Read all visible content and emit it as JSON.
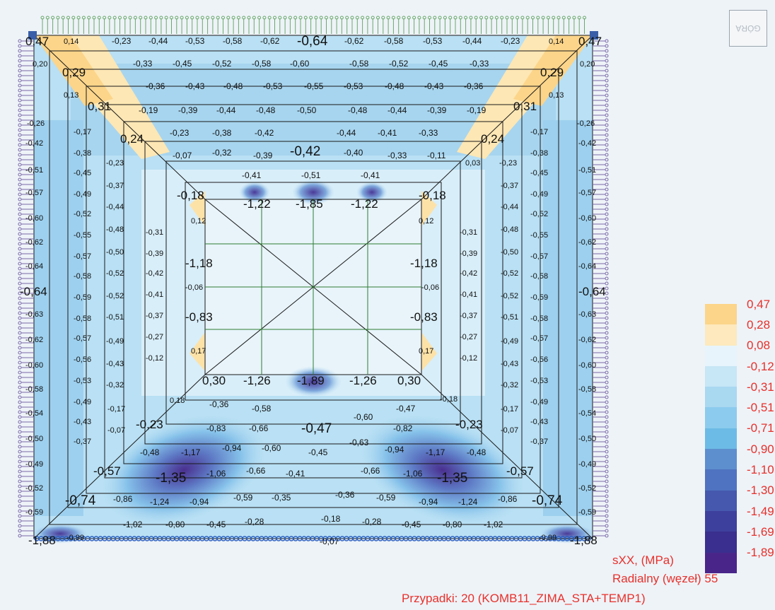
{
  "view_cube": {
    "label": "GÓRA"
  },
  "legend": {
    "colors": [
      "#fcd58a",
      "#fde9bd",
      "#e7f4fb",
      "#c7e6f6",
      "#a9d8f1",
      "#8ccbed",
      "#6cbbe6",
      "#5d8fcf",
      "#4f73c0",
      "#4558ad",
      "#3e409d",
      "#3a2f8e",
      "#49258a"
    ],
    "labels": [
      "0,47",
      "0,28",
      "0,08",
      "-0,12",
      "-0,31",
      "-0,51",
      "-0,71",
      "-0,90",
      "-1,10",
      "-1,30",
      "-1,49",
      "-1,69",
      "-1,89"
    ]
  },
  "info": {
    "quantity": "sXX, (MPa)",
    "direction": "Radialny (węzeł) 55",
    "case": "Przypadki: 20 (KOMB11_ZIMA_STA+TEMP1)"
  },
  "map_values": {
    "r1": [
      "0,47",
      "0,14",
      "-0,23",
      "-0,44",
      "-0,53",
      "-0,58",
      "-0,62",
      "-0,64",
      "-0,62",
      "-0,58",
      "-0,53",
      "-0,44",
      "-0,23",
      "0,14",
      "0,47"
    ],
    "r2": [
      "0,20",
      "-0,33",
      "-0,45",
      "-0,52",
      "-0,58",
      "-0,60",
      "-0,58",
      "-0,52",
      "-0,45",
      "-0,33",
      "0,20"
    ],
    "r2b": [
      "0,29",
      "0,29"
    ],
    "r3": [
      "0,13",
      "-0,36",
      "-0,43",
      "-0,48",
      "-0,53",
      "-0,55",
      "-0,53",
      "-0,48",
      "-0,43",
      "-0,36",
      "0,13"
    ],
    "r4": [
      "0,31",
      "-0,19",
      "-0,39",
      "-0,44",
      "-0,48",
      "-0,50",
      "-0,48",
      "-0,44",
      "-0,39",
      "-0,19",
      "0,31"
    ],
    "r5": [
      "-0,26",
      "-0,17",
      "-0,23",
      "-0,38",
      "-0,42",
      "-0,44",
      "-0,41",
      "-0,33",
      "-0,17",
      "-0,26"
    ],
    "r5b": [
      "0,24",
      "0,24"
    ],
    "r6": [
      "-0,42",
      "-0,38",
      "-0,07",
      "-0,32",
      "-0,39",
      "-0,42",
      "-0,40",
      "-0,33",
      "-0,11",
      "0,03",
      "-0,38",
      "-0,42"
    ],
    "r6b": [
      "-0,23",
      "-0,23"
    ],
    "r7": [
      "-0,51",
      "-0,45",
      "-0,41",
      "-0,51",
      "-0,41",
      "-0,45",
      "-0,51"
    ],
    "r8": [
      "-0,57",
      "-0,49",
      "-0,37",
      "-0,18",
      "-1,22",
      "-1,85",
      "-1,22",
      "-0,18",
      "-0,37",
      "-0,49",
      "-0,57"
    ],
    "r9": [
      "-0,60",
      "-0,52",
      "-0,44",
      "0,12",
      "0,12",
      "-0,44",
      "-0,52",
      "-0,60"
    ],
    "r10": [
      "-0,62",
      "-0,55",
      "-0,48",
      "-0,31",
      "-0,31",
      "-0,48",
      "-0,55",
      "-0,62"
    ],
    "r11": [
      "-0,64",
      "-0,57",
      "-0,50",
      "-0,39",
      "-0,39",
      "-0,50",
      "-0,57",
      "-0,64"
    ],
    "r11b": [
      "-1,18",
      "-1,18"
    ],
    "r12": [
      "-0,58",
      "-0,52",
      "-0,42",
      "-0,42",
      "-0,52",
      "-0,58"
    ],
    "r13": [
      "-0,64",
      "-0,59",
      "-0,52",
      "-0,41",
      "-0,06",
      "-0,06",
      "-0,41",
      "-0,52",
      "-0,59",
      "-0,64"
    ],
    "r14": [
      "-0,63",
      "-0,58",
      "-0,51",
      "-0,37",
      "-0,83",
      "-0,83",
      "-0,37",
      "-0,51",
      "-0,58",
      "-0,63"
    ],
    "r15": [
      "-0,62",
      "-0,57",
      "-0,49",
      "-0,27",
      "-0,27",
      "-0,49",
      "-0,57",
      "-0,62"
    ],
    "r16": [
      "-0,60",
      "-0,56",
      "-0,43",
      "-0,12",
      "0,17",
      "0,17",
      "-0,12",
      "-0,43",
      "-0,56",
      "-0,60"
    ],
    "r17": [
      "-0,53",
      "-0,32",
      "0,30",
      "-1,26",
      "-1,89",
      "-1,26",
      "0,30",
      "-0,32",
      "-0,53"
    ],
    "r18": [
      "-0,58",
      "-0,49",
      "0,18",
      "-0,36",
      "-0,58",
      "-0,60",
      "-0,47",
      "-0,18",
      "-0,49",
      "-0,58"
    ],
    "r19": [
      "-0,54",
      "-0,43",
      "-0,17",
      "-0,17",
      "-0,43",
      "-0,54"
    ],
    "r20": [
      "-0,50",
      "-0,37",
      "-0,07",
      "-0,23",
      "-0,83",
      "-0,66",
      "-0,47",
      "-0,82",
      "-0,23",
      "-0,07",
      "-0,37",
      "-0,50"
    ],
    "r21": [
      "-0,48",
      "-1,17",
      "-0,94",
      "-0,60",
      "-0,45",
      "-0,63",
      "-0,94",
      "-1,17",
      "-0,48"
    ],
    "r22": [
      "-0,49",
      "-0,57",
      "-1,35",
      "-1,06",
      "-0,66",
      "-0,41",
      "-0,66",
      "-1,06",
      "-1,35",
      "-0,57",
      "-0,49"
    ],
    "r23": [
      "-0,52",
      "-0,74",
      "-0,86",
      "-1,24",
      "-0,94",
      "-0,59",
      "-0,35",
      "-0,36",
      "-0,59",
      "-0,94",
      "-1,24",
      "-0,86",
      "-0,74",
      "-0,52"
    ],
    "r24": [
      "-0,59",
      "-0,18",
      "-0,59"
    ],
    "r25": [
      "-1,02",
      "-0,80",
      "-0,45",
      "-0,28",
      "-0,28",
      "-0,45",
      "-0,80",
      "-1,02"
    ],
    "r26": [
      "-1,88",
      "-0,99",
      "-0,07",
      "-0,99",
      "-1,88"
    ]
  }
}
